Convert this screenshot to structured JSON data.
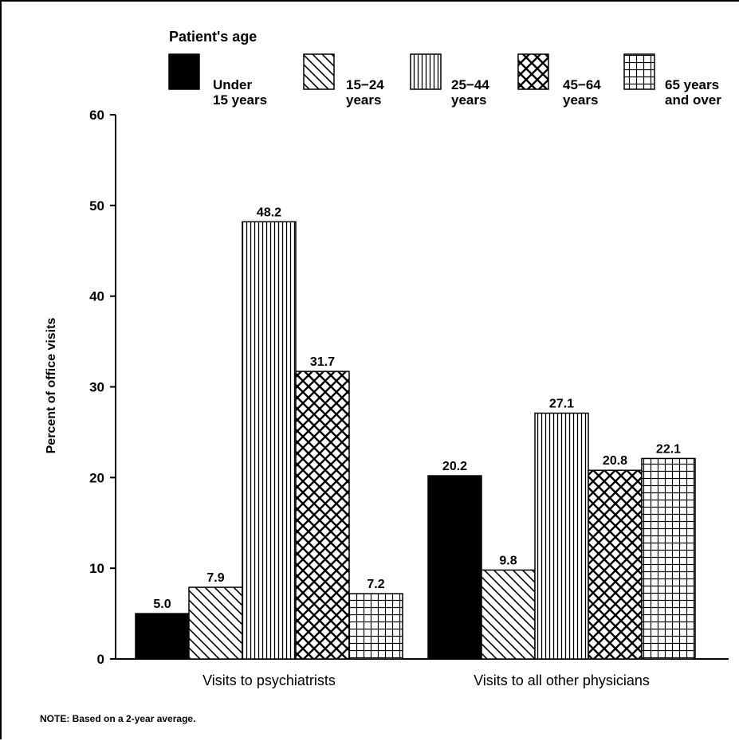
{
  "chart_data": {
    "type": "bar",
    "categories": [
      "Visits to psychiatrists",
      "Visits to all other physicians"
    ],
    "series": [
      {
        "name": "Under 15 years",
        "label_lines": [
          "Under",
          "15 years"
        ],
        "pattern": "solid",
        "values": [
          5.0,
          20.2
        ]
      },
      {
        "name": "15–24 years",
        "label_lines": [
          "15−24",
          "years"
        ],
        "pattern": "diagonal",
        "values": [
          7.9,
          9.8
        ]
      },
      {
        "name": "25–44 years",
        "label_lines": [
          "25−44",
          "years"
        ],
        "pattern": "vertical",
        "values": [
          48.2,
          27.1
        ]
      },
      {
        "name": "45–64 years",
        "label_lines": [
          "45−64",
          "years"
        ],
        "pattern": "crosshatch",
        "values": [
          31.7,
          20.8
        ]
      },
      {
        "name": "65 years and over",
        "label_lines": [
          "65 years",
          "and over"
        ],
        "pattern": "grid",
        "values": [
          7.2,
          22.1
        ]
      }
    ],
    "value_labels": [
      [
        "5.0",
        "20.2"
      ],
      [
        "7.9",
        "9.8"
      ],
      [
        "48.2",
        "27.1"
      ],
      [
        "31.7",
        "20.8"
      ],
      [
        "7.2",
        "22.1"
      ]
    ],
    "legend_title": "Patient's age",
    "legend_position": "top",
    "ylabel": "Percent of office visits",
    "xlabel": "",
    "ylim": [
      0,
      60
    ],
    "yticks": [
      0,
      10,
      20,
      30,
      40,
      50,
      60
    ],
    "grid": false,
    "colors": {
      "ink": "#000000",
      "background": "#ffffff"
    }
  },
  "note": "NOTE: Based on a 2-year average."
}
